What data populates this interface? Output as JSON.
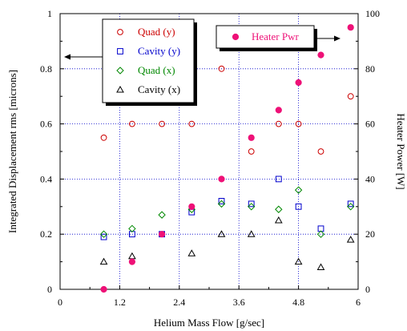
{
  "chart_data": {
    "type": "scatter",
    "title": "",
    "xlabel": "Helium Mass Flow [g/sec]",
    "ylabel_left": "Integrated Displacement rms [microns]",
    "ylabel_right": "Heater Power [W]",
    "xlim": [
      0,
      6
    ],
    "ylim_left": [
      0,
      1
    ],
    "ylim_right": [
      0,
      100
    ],
    "x_ticks": [
      "0",
      "1.2",
      "2.4",
      "3.6",
      "4.8",
      "6"
    ],
    "y_left_ticks": [
      "0",
      "0.2",
      "0.4",
      "0.6",
      "0.8",
      "1"
    ],
    "y_right_ticks": [
      "0",
      "20",
      "40",
      "60",
      "80",
      "100"
    ],
    "grid": true,
    "legend_placement": "top-left",
    "series": [
      {
        "name": "Quad (y)",
        "axis": "left",
        "marker": "circle-open",
        "color": "#cc0000",
        "x": [
          0.88,
          1.45,
          2.05,
          2.65,
          3.25,
          3.85,
          4.4,
          4.8,
          5.25,
          5.85
        ],
        "y": [
          0.55,
          0.6,
          0.6,
          0.6,
          0.8,
          0.5,
          0.6,
          0.6,
          0.5,
          0.7
        ]
      },
      {
        "name": "Cavity (y)",
        "axis": "left",
        "marker": "square-open",
        "color": "#0000cc",
        "x": [
          0.88,
          1.45,
          2.05,
          2.65,
          3.25,
          3.85,
          4.4,
          4.8,
          5.25,
          5.85
        ],
        "y": [
          0.19,
          0.2,
          0.2,
          0.28,
          0.32,
          0.31,
          0.4,
          0.3,
          0.22,
          0.31
        ]
      },
      {
        "name": "Quad (x)",
        "axis": "left",
        "marker": "diamond-open",
        "color": "#008800",
        "x": [
          0.88,
          1.45,
          2.05,
          2.65,
          3.25,
          3.85,
          4.4,
          4.8,
          5.25,
          5.85
        ],
        "y": [
          0.2,
          0.22,
          0.27,
          0.29,
          0.31,
          0.3,
          0.29,
          0.36,
          0.2,
          0.3
        ]
      },
      {
        "name": "Cavity (x)",
        "axis": "left",
        "marker": "triangle-open",
        "color": "#000000",
        "x": [
          0.88,
          1.45,
          2.65,
          3.25,
          3.85,
          4.4,
          4.8,
          5.25,
          5.85
        ],
        "y": [
          0.1,
          0.12,
          0.13,
          0.2,
          0.2,
          0.25,
          0.1,
          0.08,
          0.18
        ]
      },
      {
        "name": "Heater Pwr",
        "axis": "right",
        "marker": "circle-filled",
        "color": "#ee1177",
        "x": [
          0.88,
          1.45,
          2.05,
          2.65,
          3.25,
          3.85,
          4.4,
          4.8,
          5.25,
          5.85
        ],
        "y": [
          0,
          10,
          20,
          30,
          40,
          55,
          65,
          75,
          85,
          95
        ]
      }
    ]
  }
}
